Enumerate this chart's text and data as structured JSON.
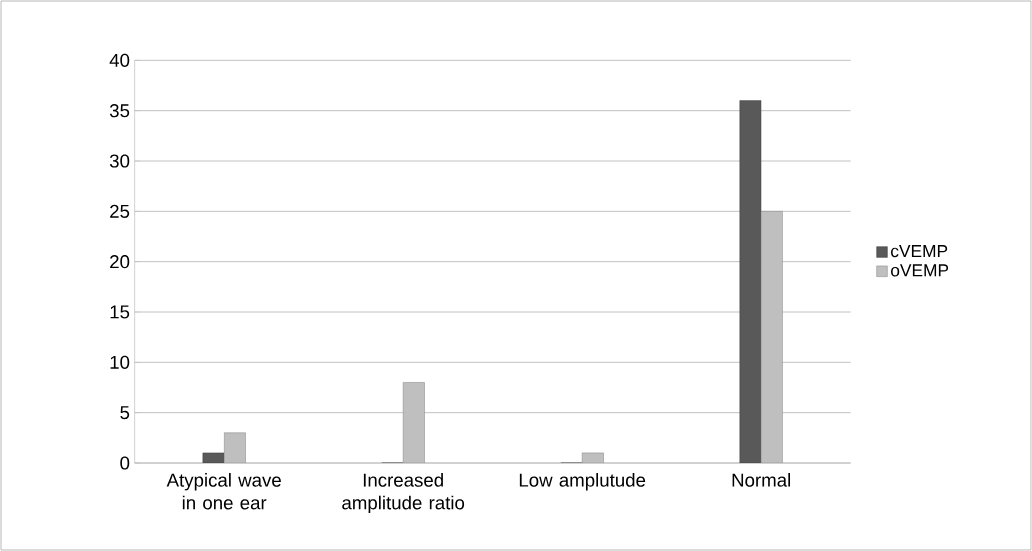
{
  "chart_data": {
    "type": "bar",
    "categories": [
      "Atypical wave in one ear",
      "Increased amplitude ratio",
      "Low amplutude",
      "Normal"
    ],
    "series": [
      {
        "name": "cVEMP",
        "color": "#595959",
        "values": [
          1,
          0,
          0,
          36
        ]
      },
      {
        "name": "oVEMP",
        "color": "#bfbfbf",
        "values": [
          3,
          8,
          1,
          25
        ]
      }
    ],
    "ylim": [
      0,
      40
    ],
    "yticks": [
      0,
      5,
      10,
      15,
      20,
      25,
      30,
      35,
      40
    ],
    "grid": "y",
    "legend": "right"
  }
}
